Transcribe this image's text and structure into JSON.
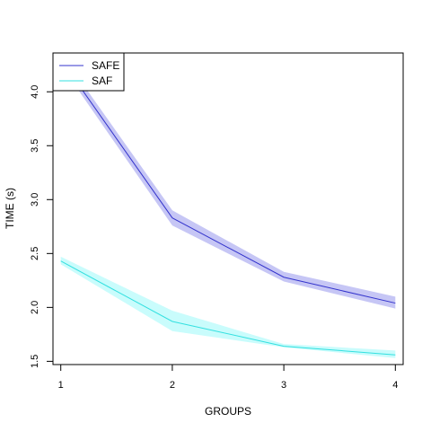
{
  "chart_data": {
    "type": "line",
    "title": "",
    "xlabel": "GROUPS",
    "ylabel": "TIME (s)",
    "x": [
      1,
      2,
      3,
      4
    ],
    "xlim": [
      0.93,
      4.07
    ],
    "ylim": [
      1.47,
      4.36
    ],
    "xticks": [
      "1",
      "2",
      "3",
      "4"
    ],
    "yticks": [
      "1.5",
      "2.0",
      "2.5",
      "3.0",
      "3.5",
      "4.0"
    ],
    "grid": false,
    "legend_position": "top-left",
    "series": [
      {
        "name": "SAFE",
        "color": "#3333cc",
        "band_color": "#c6c6f5",
        "values": [
          4.3,
          2.83,
          2.28,
          2.04
        ],
        "lower": [
          4.25,
          2.76,
          2.24,
          1.99
        ],
        "upper": [
          4.36,
          2.9,
          2.33,
          2.1
        ]
      },
      {
        "name": "SAF",
        "color": "#33e0e0",
        "band_color": "#c9fcfc",
        "values": [
          2.43,
          1.87,
          1.64,
          1.56
        ],
        "lower": [
          2.4,
          1.78,
          1.63,
          1.53
        ],
        "upper": [
          2.47,
          1.97,
          1.66,
          1.6
        ]
      }
    ]
  }
}
